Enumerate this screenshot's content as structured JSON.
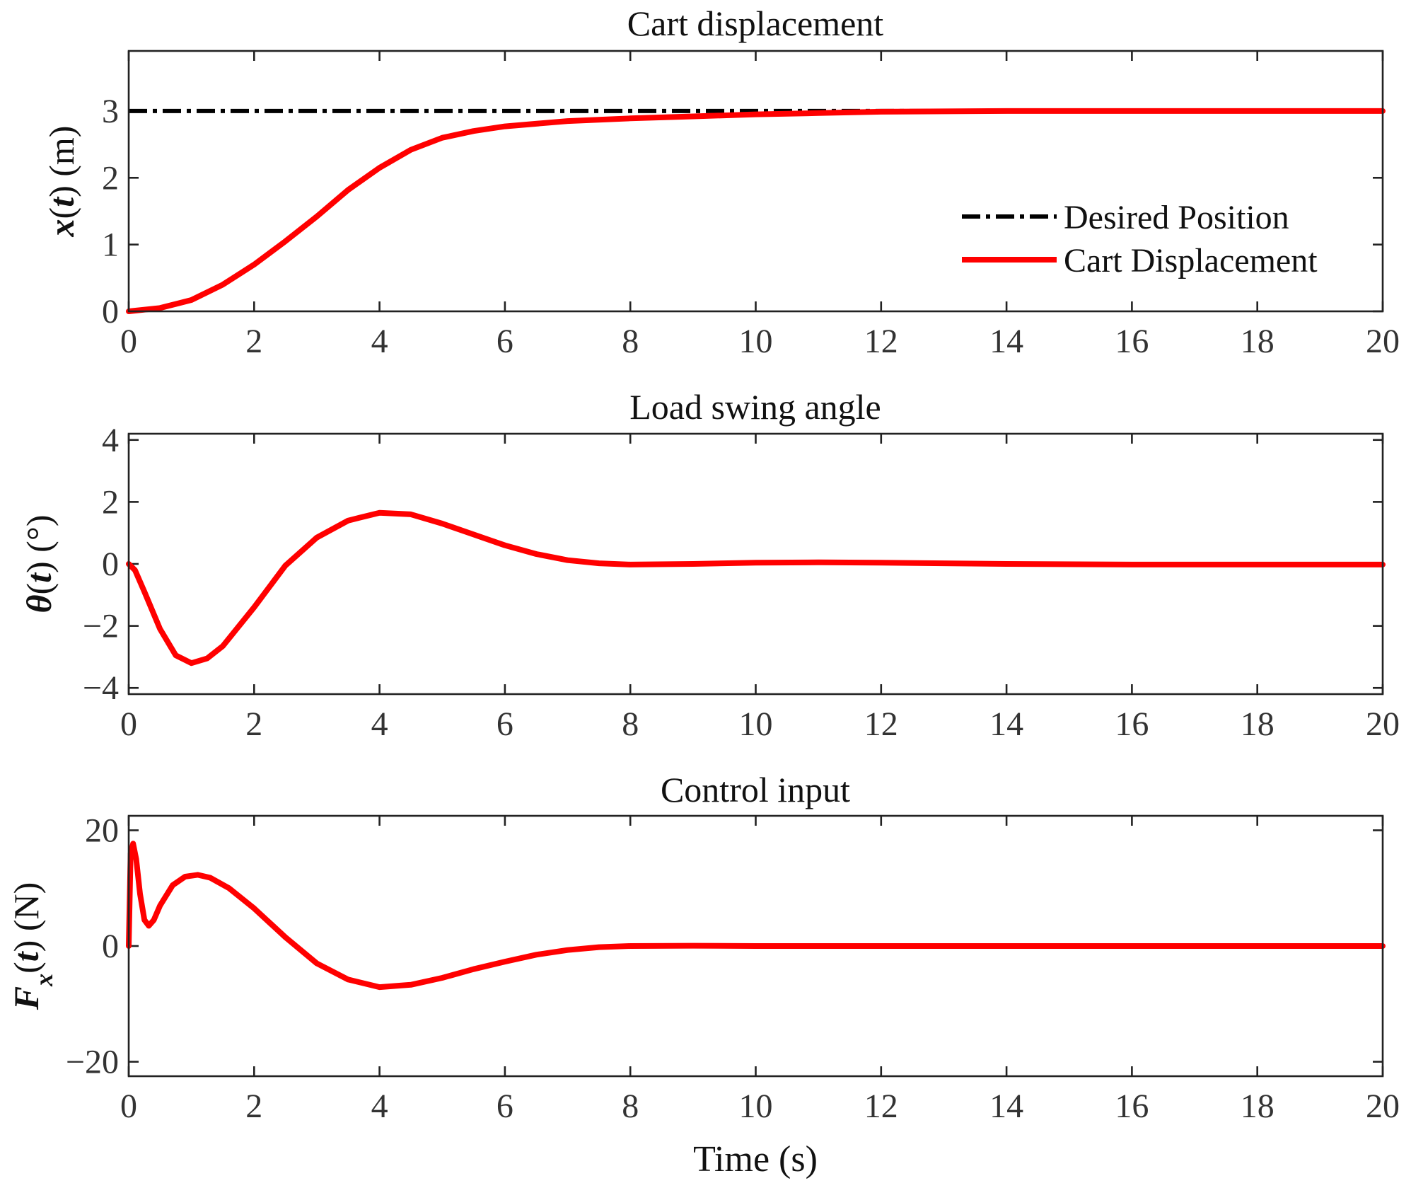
{
  "colors": {
    "response": "#ff0000",
    "reference": "#000000",
    "axis": "#222222"
  },
  "chart_data": [
    {
      "type": "line",
      "title": "Cart displacement",
      "ylabel": "x(t) (m)",
      "xlabel": "",
      "xlim": [
        0,
        20
      ],
      "ylim": [
        0,
        3.9
      ],
      "xticks": [
        0,
        2,
        4,
        6,
        8,
        10,
        12,
        14,
        16,
        18,
        20
      ],
      "yticks": [
        0,
        1,
        2,
        3
      ],
      "legend": {
        "position": "right",
        "entries": [
          "Desired Position",
          "Cart Displacement"
        ]
      },
      "series": [
        {
          "name": "Desired Position",
          "style": "dash-dot",
          "color": "#000000",
          "x": [
            0,
            20
          ],
          "y": [
            3,
            3
          ]
        },
        {
          "name": "Cart Displacement",
          "style": "solid",
          "color": "#ff0000",
          "x": [
            0,
            0.5,
            1,
            1.5,
            2,
            2.5,
            3,
            3.5,
            4,
            4.5,
            5,
            5.5,
            6,
            7,
            8,
            9,
            10,
            11,
            12,
            14,
            16,
            18,
            20
          ],
          "y": [
            0,
            0.05,
            0.17,
            0.4,
            0.7,
            1.05,
            1.42,
            1.82,
            2.15,
            2.42,
            2.6,
            2.7,
            2.77,
            2.85,
            2.89,
            2.92,
            2.95,
            2.97,
            2.99,
            3.0,
            3.0,
            3.0,
            3.0
          ]
        }
      ]
    },
    {
      "type": "line",
      "title": "Load swing angle",
      "ylabel": "θ(t) (°)",
      "xlabel": "",
      "xlim": [
        0,
        20
      ],
      "ylim": [
        -4.2,
        4.2
      ],
      "xticks": [
        0,
        2,
        4,
        6,
        8,
        10,
        12,
        14,
        16,
        18,
        20
      ],
      "yticks": [
        -4,
        -2,
        0,
        2,
        4
      ],
      "ytick_labels": [
        "−4",
        "−2",
        "0",
        "2",
        "4"
      ],
      "series": [
        {
          "color": "#ff0000",
          "style": "solid",
          "x": [
            0,
            0.1,
            0.25,
            0.5,
            0.75,
            1.0,
            1.25,
            1.5,
            2,
            2.5,
            3,
            3.5,
            4,
            4.5,
            5,
            5.5,
            6,
            6.5,
            7,
            7.5,
            8,
            9,
            10,
            11,
            12,
            14,
            16,
            18,
            20
          ],
          "y": [
            0,
            -0.2,
            -0.9,
            -2.1,
            -2.95,
            -3.2,
            -3.05,
            -2.65,
            -1.4,
            -0.05,
            0.85,
            1.4,
            1.65,
            1.6,
            1.3,
            0.95,
            0.6,
            0.32,
            0.12,
            0.02,
            -0.02,
            0.0,
            0.04,
            0.05,
            0.04,
            0.0,
            -0.02,
            -0.02,
            -0.02
          ]
        }
      ]
    },
    {
      "type": "line",
      "title": "Control input",
      "ylabel": "F_x(t) (N)",
      "xlabel": "Time (s)",
      "xlim": [
        0,
        20
      ],
      "ylim": [
        -22.5,
        22.5
      ],
      "xticks": [
        0,
        2,
        4,
        6,
        8,
        10,
        12,
        14,
        16,
        18,
        20
      ],
      "yticks": [
        -20,
        0,
        20
      ],
      "ytick_labels": [
        "−20",
        "0",
        "20"
      ],
      "series": [
        {
          "color": "#ff0000",
          "style": "solid",
          "x": [
            0,
            0.03,
            0.07,
            0.12,
            0.18,
            0.25,
            0.32,
            0.4,
            0.5,
            0.7,
            0.9,
            1.1,
            1.3,
            1.6,
            2,
            2.5,
            3,
            3.5,
            4,
            4.5,
            5,
            5.5,
            6,
            6.5,
            7,
            7.5,
            8,
            9,
            10,
            12,
            14,
            16,
            18,
            20
          ],
          "y": [
            0,
            16,
            17.7,
            15,
            9,
            4.5,
            3.5,
            4.5,
            7,
            10.5,
            12,
            12.3,
            11.8,
            10,
            6.5,
            1.5,
            -3,
            -5.8,
            -7.1,
            -6.7,
            -5.5,
            -4,
            -2.7,
            -1.5,
            -0.7,
            -0.2,
            0,
            0.05,
            0.0,
            0.0,
            0.0,
            0.0,
            0.0,
            0.0
          ]
        }
      ]
    }
  ]
}
